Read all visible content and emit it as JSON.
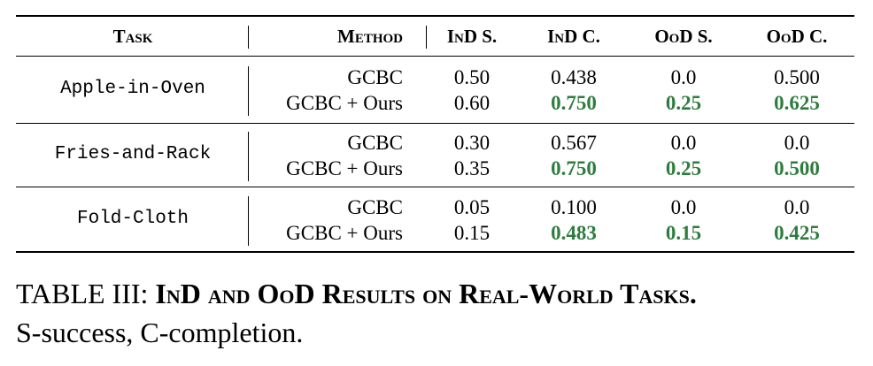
{
  "table": {
    "header": [
      "Task",
      "Method",
      "InD S.",
      "InD C.",
      "OoD S.",
      "OoD C."
    ],
    "groups": [
      {
        "task": "Apple-in-Oven",
        "rows": [
          [
            "GCBC",
            "0.50",
            "0.438",
            "0.0",
            "0.500"
          ],
          [
            "GCBC + Ours",
            "0.60",
            "0.750",
            "0.25",
            "0.625"
          ]
        ]
      },
      {
        "task": "Fries-and-Rack",
        "rows": [
          [
            "GCBC",
            "0.30",
            "0.567",
            "0.0",
            "0.0"
          ],
          [
            "GCBC + Ours",
            "0.35",
            "0.750",
            "0.25",
            "0.500"
          ]
        ]
      },
      {
        "task": "Fold-Cloth",
        "rows": [
          [
            "GCBC",
            "0.05",
            "0.100",
            "0.0",
            "0.0"
          ],
          [
            "GCBC + Ours",
            "0.15",
            "0.483",
            "0.15",
            "0.425"
          ]
        ]
      }
    ]
  },
  "caption": {
    "label": "TABLE III:",
    "title": "InD and OoD Results on Real-World Tasks.",
    "text": "S-success, C-completion."
  }
}
